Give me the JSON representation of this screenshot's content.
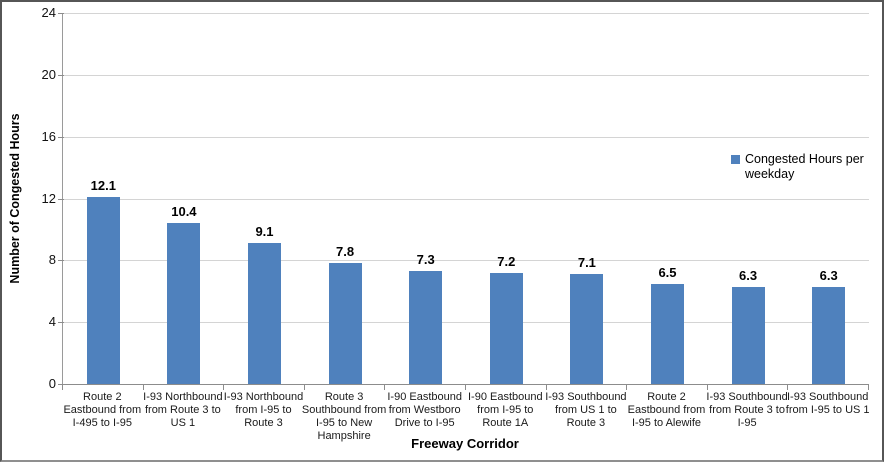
{
  "chart_data": {
    "type": "bar",
    "xlabel": "Freeway Corridor",
    "ylabel": "Number of Congested Hours",
    "ylim": [
      0,
      24
    ],
    "ytick_step": 4,
    "grid": true,
    "legend_position": "right",
    "bar_value_labels_shown": true,
    "categories": [
      "Route 2 Eastbound from I-495 to I-95",
      "I-93 Northbound from Route 3 to US 1",
      "I-93 Northbound from I-95 to Route 3",
      "Route 3 Southbound from I-95 to New Hampshire",
      "I-90 Eastbound from Westboro Drive to I-95",
      "I-90 Eastbound from I-95 to Route 1A",
      "I-93 Southbound from US 1 to Route 3",
      "Route 2 Eastbound from I-95 to Alewife",
      "I-93 Southbound from Route 3 to I-95",
      "I-93 Southbound from I-95 to US 1"
    ],
    "series": [
      {
        "name": "Congested Hours per weekday",
        "values": [
          12.1,
          10.4,
          9.1,
          7.8,
          7.3,
          7.2,
          7.1,
          6.5,
          6.3,
          6.3
        ],
        "color": "#4F81BD"
      }
    ]
  },
  "colors": {
    "bar": "#4F81BD",
    "gridline": "#d4d4d4",
    "axis": "#8c8c8c",
    "text": "#000000"
  }
}
